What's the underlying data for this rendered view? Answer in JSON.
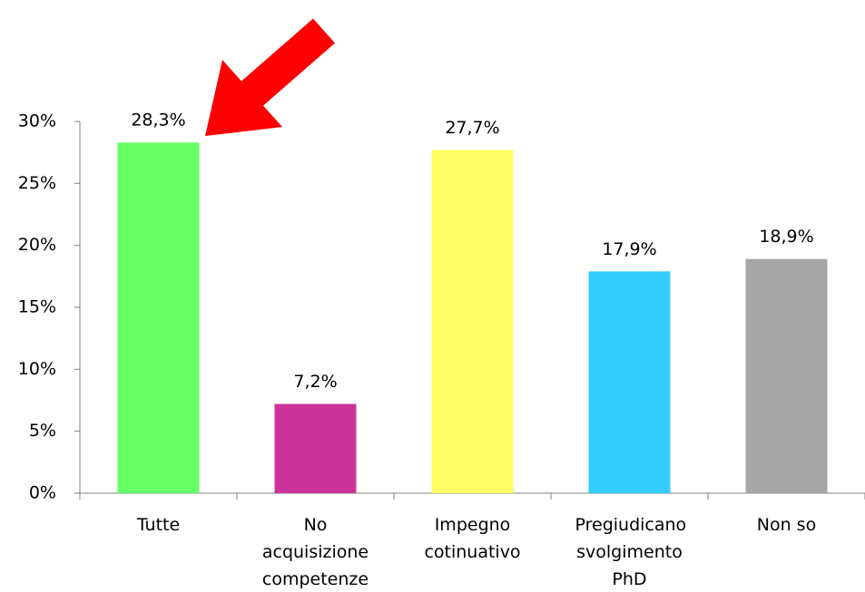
{
  "chart_data": {
    "type": "bar",
    "categories": [
      "Tutte",
      "No acquisizione competenze",
      "Impegno cotinuativo",
      "Pregiudicano svolgimento PhD",
      "Non so"
    ],
    "values": [
      28.3,
      7.2,
      27.7,
      17.9,
      18.9
    ],
    "value_labels": [
      "28,3%",
      "7,2%",
      "27,7%",
      "17,9%",
      "18,9%"
    ],
    "colors": [
      "#66ff66",
      "#cc3399",
      "#ffff66",
      "#33ccff",
      "#a6a6a6"
    ],
    "ylim": [
      0,
      30
    ],
    "yticks": [
      {
        "value": 0,
        "label": "0%"
      },
      {
        "value": 5,
        "label": "5%"
      },
      {
        "value": 10,
        "label": "10%"
      },
      {
        "value": 15,
        "label": "15%"
      },
      {
        "value": 20,
        "label": "20%"
      },
      {
        "value": 25,
        "label": "25%"
      },
      {
        "value": 30,
        "label": "30%"
      }
    ],
    "grid": false
  }
}
